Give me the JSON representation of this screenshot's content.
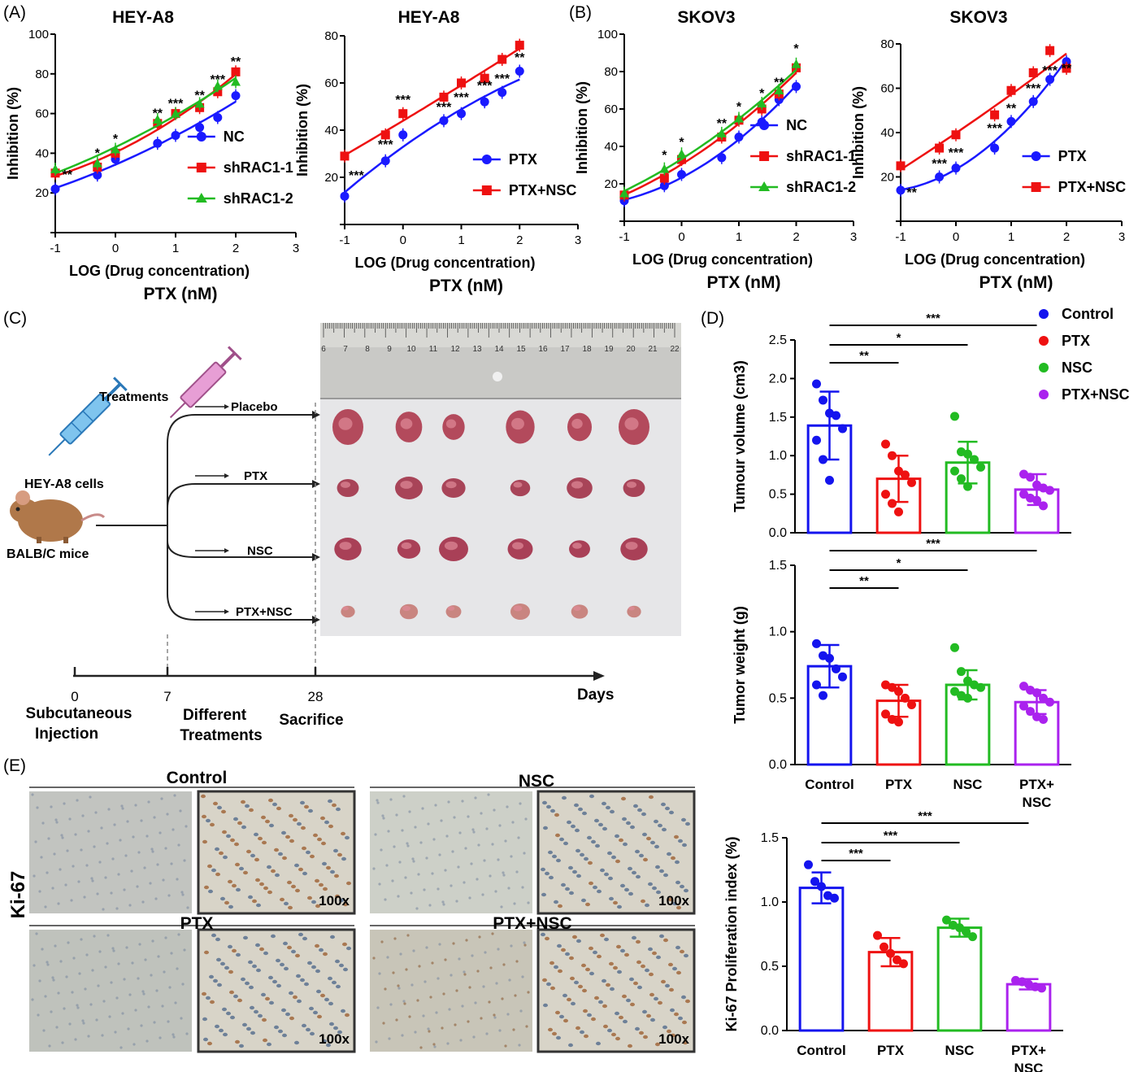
{
  "panel_labels": [
    "(A)",
    "(B)",
    "(C)",
    "(D)",
    "(E)"
  ],
  "chart_data": [
    {
      "id": "A1",
      "type": "line",
      "title": "HEY-A8",
      "xlabel": "LOG (Drug concentration)",
      "xlabel2": "PTX (nM)",
      "ylabel": "Inhibition (%)",
      "xlim": [
        -1,
        3
      ],
      "ylim": [
        0,
        100
      ],
      "xticks": [
        "-1",
        "0",
        "1",
        "2",
        "3"
      ],
      "yticks": [
        "20",
        "40",
        "60",
        "80",
        "100"
      ],
      "legend_position": "bottom-right",
      "x": [
        -1,
        -0.3,
        0,
        0.7,
        1,
        1.4,
        1.7,
        2
      ],
      "series": [
        {
          "name": "NC",
          "color": "#1a1aff",
          "marker": "circle",
          "values": [
            22,
            29,
            37,
            45,
            49,
            53,
            58,
            69
          ]
        },
        {
          "name": "shRAC1-1",
          "color": "#ee1111",
          "marker": "square",
          "values": [
            30,
            33,
            40,
            55,
            60,
            63,
            71,
            81
          ]
        },
        {
          "name": "shRAC1-2",
          "color": "#22bb22",
          "marker": "triangle",
          "values": [
            32,
            35,
            42,
            57,
            60,
            65,
            74,
            76
          ]
        }
      ],
      "annotations": [
        {
          "x": -0.8,
          "y": 27,
          "text": "**"
        },
        {
          "x": -0.3,
          "y": 38,
          "text": "*"
        },
        {
          "x": 0,
          "y": 45,
          "text": "*"
        },
        {
          "x": 0.7,
          "y": 58,
          "text": "**"
        },
        {
          "x": 1,
          "y": 63,
          "text": "***"
        },
        {
          "x": 1.4,
          "y": 67,
          "text": "**"
        },
        {
          "x": 1.7,
          "y": 75,
          "text": "***"
        },
        {
          "x": 2,
          "y": 84,
          "text": "**"
        }
      ]
    },
    {
      "id": "A2",
      "type": "line",
      "title": "HEY-A8",
      "xlabel": "LOG (Drug concentration)",
      "xlabel2": "PTX (nM)",
      "ylabel": "Inhibition (%)",
      "xlim": [
        -1,
        3
      ],
      "ylim": [
        0,
        80
      ],
      "xticks": [
        "-1",
        "0",
        "1",
        "2",
        "3"
      ],
      "yticks": [
        "20",
        "40",
        "60",
        "80"
      ],
      "legend_position": "bottom-right",
      "x": [
        -1,
        -0.3,
        0,
        0.7,
        1,
        1.4,
        1.7,
        2
      ],
      "series": [
        {
          "name": "PTX",
          "color": "#1a1aff",
          "marker": "circle",
          "values": [
            12,
            27,
            38,
            44,
            47,
            52,
            56,
            65
          ]
        },
        {
          "name": "PTX+NSC",
          "color": "#ee1111",
          "marker": "square",
          "values": [
            29,
            38,
            47,
            54,
            60,
            62,
            70,
            76
          ]
        }
      ],
      "annotations": [
        {
          "x": -0.8,
          "y": 19,
          "text": "***"
        },
        {
          "x": -0.3,
          "y": 32,
          "text": "***"
        },
        {
          "x": 0,
          "y": 51,
          "text": "***"
        },
        {
          "x": 0.7,
          "y": 48,
          "text": "***"
        },
        {
          "x": 1,
          "y": 52,
          "text": "***"
        },
        {
          "x": 1.4,
          "y": 57,
          "text": "***"
        },
        {
          "x": 1.7,
          "y": 60,
          "text": "***"
        },
        {
          "x": 2,
          "y": 69,
          "text": "**"
        }
      ]
    },
    {
      "id": "B1",
      "type": "line",
      "title": "SKOV3",
      "xlabel": "LOG (Drug concentration)",
      "xlabel2": "PTX (nM)",
      "ylabel": "Inhibition (%)",
      "xlim": [
        -1,
        3
      ],
      "ylim": [
        0,
        100
      ],
      "xticks": [
        "-1",
        "0",
        "1",
        "2",
        "3"
      ],
      "yticks": [
        "20",
        "40",
        "60",
        "80",
        "100"
      ],
      "legend_position": "bottom-right",
      "x": [
        -1,
        -0.3,
        0,
        0.7,
        1,
        1.4,
        1.7,
        2
      ],
      "series": [
        {
          "name": "NC",
          "color": "#1a1aff",
          "marker": "circle",
          "values": [
            11,
            19,
            25,
            34,
            45,
            53,
            65,
            72
          ]
        },
        {
          "name": "shRAC1-1",
          "color": "#ee1111",
          "marker": "square",
          "values": [
            14,
            23,
            33,
            45,
            54,
            60,
            68,
            82
          ]
        },
        {
          "name": "shRAC1-2",
          "color": "#22bb22",
          "marker": "triangle",
          "values": [
            15,
            28,
            36,
            47,
            55,
            63,
            70,
            84
          ]
        }
      ],
      "annotations": [
        {
          "x": -0.3,
          "y": 33,
          "text": "*"
        },
        {
          "x": 0,
          "y": 40,
          "text": "*"
        },
        {
          "x": 0.7,
          "y": 50,
          "text": "**"
        },
        {
          "x": 1,
          "y": 59,
          "text": "*"
        },
        {
          "x": 1.4,
          "y": 66,
          "text": "*"
        },
        {
          "x": 1.7,
          "y": 72,
          "text": "**"
        },
        {
          "x": 2,
          "y": 90,
          "text": "*"
        }
      ]
    },
    {
      "id": "B2",
      "type": "line",
      "title": "SKOV3",
      "xlabel": "LOG (Drug concentration)",
      "xlabel2": "PTX (nM)",
      "ylabel": "Inhibition (%)",
      "xlim": [
        -1,
        3
      ],
      "ylim": [
        0,
        80
      ],
      "xticks": [
        "-1",
        "0",
        "1",
        "2",
        "3"
      ],
      "yticks": [
        "20",
        "40",
        "60",
        "80"
      ],
      "legend_position": "bottom-right",
      "x": [
        -1,
        -0.3,
        0,
        0.7,
        1,
        1.4,
        1.7,
        2
      ],
      "series": [
        {
          "name": "PTX",
          "color": "#1a1aff",
          "marker": "circle",
          "values": [
            14,
            20,
            24,
            33,
            45,
            54,
            64,
            72
          ]
        },
        {
          "name": "PTX+NSC",
          "color": "#ee1111",
          "marker": "square",
          "values": [
            25,
            33,
            39,
            48,
            59,
            67,
            77,
            69
          ]
        }
      ],
      "annotations": [
        {
          "x": -0.8,
          "y": 11,
          "text": "**"
        },
        {
          "x": -0.3,
          "y": 24,
          "text": "***"
        },
        {
          "x": 0,
          "y": 29,
          "text": "***"
        },
        {
          "x": 0.7,
          "y": 40,
          "text": "***"
        },
        {
          "x": 1,
          "y": 49,
          "text": "**"
        },
        {
          "x": 1.4,
          "y": 58,
          "text": "***"
        },
        {
          "x": 1.7,
          "y": 66,
          "text": "***"
        },
        {
          "x": 2,
          "y": 67,
          "text": "**"
        }
      ]
    },
    {
      "id": "D1",
      "type": "bar",
      "ylabel": "Tumour volume (cm3)",
      "ylim": [
        0,
        2.5
      ],
      "yticks": [
        "0.0",
        "0.5",
        "1.0",
        "1.5",
        "2.0",
        "2.5"
      ],
      "categories": [
        "Control",
        "PTX",
        "NSC",
        "PTX+NSC"
      ],
      "values": [
        1.39,
        0.7,
        0.91,
        0.56
      ],
      "errors": [
        0.44,
        0.3,
        0.27,
        0.2
      ],
      "points": [
        [
          1.93,
          1.72,
          1.55,
          1.52,
          1.35,
          1.2,
          0.95,
          0.68
        ],
        [
          1.15,
          1.0,
          0.8,
          0.75,
          0.65,
          0.5,
          0.38,
          0.27
        ],
        [
          1.51,
          1.05,
          1.02,
          0.95,
          0.85,
          0.8,
          0.7,
          0.6
        ],
        [
          0.76,
          0.72,
          0.62,
          0.58,
          0.55,
          0.5,
          0.45,
          0.42,
          0.35
        ]
      ],
      "significance": [
        {
          "from": 0,
          "to": 1,
          "text": "**"
        },
        {
          "from": 0,
          "to": 2,
          "text": "*"
        },
        {
          "from": 0,
          "to": 3,
          "text": "***"
        }
      ],
      "legend": [
        {
          "name": "Control",
          "color": "#1414ee"
        },
        {
          "name": "PTX",
          "color": "#ee1111"
        },
        {
          "name": "NSC",
          "color": "#22bb22"
        },
        {
          "name": "PTX+NSC",
          "color": "#aa22ee"
        }
      ]
    },
    {
      "id": "D2",
      "type": "bar",
      "ylabel": "Tumor weight (g)",
      "ylim": [
        0,
        1.5
      ],
      "yticks": [
        "0.0",
        "0.5",
        "1.0",
        "1.5"
      ],
      "categories": [
        "Control",
        "PTX",
        "NSC",
        "PTX+ NSC"
      ],
      "values": [
        0.74,
        0.48,
        0.6,
        0.47
      ],
      "errors": [
        0.16,
        0.12,
        0.11,
        0.09
      ],
      "points": [
        [
          0.91,
          0.82,
          0.8,
          0.72,
          0.66,
          0.6,
          0.52
        ],
        [
          0.6,
          0.58,
          0.55,
          0.5,
          0.45,
          0.38,
          0.34,
          0.32
        ],
        [
          0.88,
          0.7,
          0.63,
          0.6,
          0.58,
          0.55,
          0.52,
          0.5
        ],
        [
          0.59,
          0.56,
          0.54,
          0.5,
          0.47,
          0.44,
          0.4,
          0.36,
          0.34
        ]
      ],
      "significance": [
        {
          "from": 0,
          "to": 1,
          "text": "**"
        },
        {
          "from": 0,
          "to": 2,
          "text": "*"
        },
        {
          "from": 0,
          "to": 3,
          "text": "***"
        }
      ]
    },
    {
      "id": "D3",
      "type": "bar",
      "ylabel": "Ki-67 Proliferation index (%)",
      "ylim": [
        0,
        1.5
      ],
      "yticks": [
        "0.0",
        "0.5",
        "1.0",
        "1.5"
      ],
      "categories": [
        "Control",
        "PTX",
        "NSC",
        "PTX+ NSC"
      ],
      "values": [
        1.11,
        0.61,
        0.8,
        0.36
      ],
      "errors": [
        0.12,
        0.11,
        0.07,
        0.04
      ],
      "points": [
        [
          1.29,
          1.16,
          1.12,
          1.05,
          1.03
        ],
        [
          0.74,
          0.65,
          0.6,
          0.55,
          0.52
        ],
        [
          0.86,
          0.82,
          0.8,
          0.77,
          0.73
        ],
        [
          0.39,
          0.38,
          0.36,
          0.34,
          0.33
        ]
      ],
      "significance": [
        {
          "from": 0,
          "to": 1,
          "text": "***"
        },
        {
          "from": 0,
          "to": 2,
          "text": "***"
        },
        {
          "from": 0,
          "to": 3,
          "text": "***"
        }
      ]
    }
  ],
  "schematic": {
    "treatments_label": "Treatments",
    "cells_label": "HEY-A8 cells",
    "mice_label": "BALB/C mice",
    "groups": [
      "Placebo",
      "PTX",
      "NSC",
      "PTX+NSC"
    ],
    "timeline_ticks": [
      "0",
      "7",
      "28"
    ],
    "timeline_end": "Days",
    "stage_labels": [
      [
        "Subcutaneous",
        "Injection"
      ],
      [
        "Different",
        "Treatments"
      ],
      [
        "Sacrifice"
      ]
    ],
    "ruler_numbers": [
      "6",
      "7",
      "8",
      "9",
      "10",
      "11",
      "12",
      "13",
      "14",
      "15",
      "16",
      "17",
      "18",
      "19",
      "20",
      "21",
      "22"
    ]
  },
  "ihc": {
    "side_label": "Ki-67",
    "panels": [
      "Control",
      "NSC",
      "PTX",
      "PTX+NSC"
    ],
    "magnification": "100x"
  }
}
